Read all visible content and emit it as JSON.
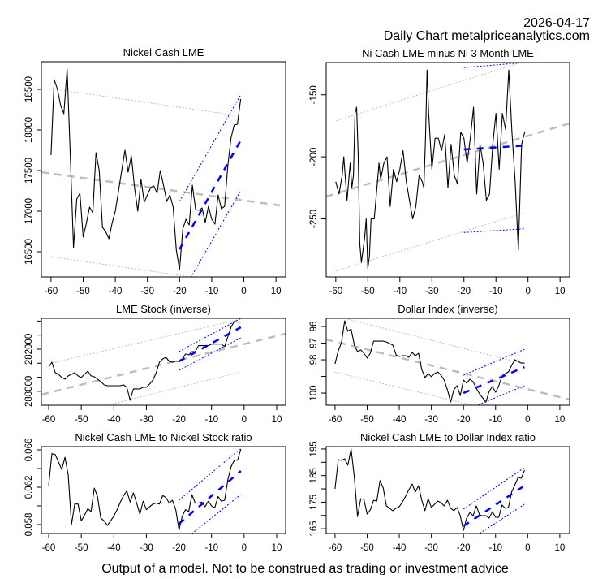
{
  "header": {
    "date": "2026-04-17",
    "subtitle": "Daily Chart metalpriceanalytics.com"
  },
  "footer": {
    "disclaimer": "Output of a model. Not to be construed as trading or investment advice"
  },
  "colors": {
    "series": "#000000",
    "long_trend": "#bebebe",
    "short_trend": "#0000ff"
  },
  "chart_data": [
    {
      "type": "line",
      "title": "Nickel Cash LME",
      "xlabel": "",
      "ylabel": "",
      "xlim": [
        -63,
        13
      ],
      "ylim": [
        16190,
        18840
      ],
      "inverted": false,
      "x_ticks": [
        -60,
        -50,
        -40,
        -30,
        -20,
        -10,
        0,
        10
      ],
      "y_ticks": [
        16500,
        17000,
        17500,
        18000,
        18500
      ],
      "y_tick_labels": [
        "16500",
        "17000",
        "17500",
        "18000",
        "18500"
      ],
      "x": [
        -60,
        -59,
        -58,
        -57,
        -56,
        -55,
        -54,
        -53,
        -52,
        -51,
        -50,
        -49,
        -48,
        -47,
        -46,
        -45,
        -44,
        -43,
        -42,
        -41,
        -40,
        -39,
        -38,
        -37,
        -36,
        -35,
        -34,
        -33,
        -32,
        -31,
        -30,
        -29,
        -28,
        -27,
        -26,
        -25,
        -24,
        -23,
        -22,
        -21,
        -20,
        -19,
        -18,
        -17,
        -16,
        -15,
        -14,
        -13,
        -12,
        -11,
        -10,
        -9,
        -8,
        -7,
        -6,
        -5,
        -4,
        -3,
        -2,
        -1
      ],
      "values": [
        17690,
        18620,
        18500,
        18300,
        18200,
        18750,
        17700,
        16550,
        17150,
        17220,
        16680,
        16850,
        17050,
        16980,
        17720,
        17500,
        16800,
        16750,
        16660,
        16850,
        17000,
        17250,
        17500,
        17750,
        17480,
        17680,
        17280,
        17000,
        17390,
        17110,
        17200,
        17290,
        17310,
        17220,
        17500,
        17320,
        17120,
        17200,
        17050,
        16520,
        16280,
        16780,
        16900,
        16830,
        17320,
        17020,
        17010,
        17040,
        16860,
        17060,
        16900,
        16840,
        17200,
        17030,
        17060,
        17550,
        17900,
        18060,
        18070,
        18380
      ],
      "long_trend": {
        "x": [
          -63,
          13
        ],
        "y": [
          17480,
          17060
        ]
      },
      "long_band": {
        "x": [
          -60,
          -1
        ],
        "upper": [
          18510,
          18170
        ],
        "lower": [
          16440,
          16100
        ]
      },
      "short_trend": {
        "x": [
          -20,
          -1
        ],
        "y": [
          16530,
          17870
        ]
      },
      "short_band": {
        "x": [
          -20,
          -1
        ],
        "upper": [
          17120,
          18430
        ],
        "lower": [
          15940,
          17250
        ]
      }
    },
    {
      "type": "line",
      "title": "Ni Cash LME minus Ni 3 Month LME",
      "xlabel": "",
      "ylabel": "",
      "xlim": [
        -63,
        13
      ],
      "ylim": [
        -296.8,
        -124
      ],
      "inverted": false,
      "x_ticks": [
        -60,
        -50,
        -40,
        -30,
        -20,
        -10,
        0,
        10
      ],
      "y_ticks": [
        -250,
        -200,
        -150
      ],
      "y_tick_labels": [
        "-250",
        "-200",
        "-150"
      ],
      "x": [
        -60,
        -59,
        -58,
        -57.5,
        -57,
        -56.5,
        -56,
        -55.5,
        -55,
        -54.5,
        -54,
        -53.5,
        -53,
        -52.5,
        -52,
        -51,
        -50.5,
        -50,
        -49.5,
        -49,
        -48,
        -47,
        -46.5,
        -46,
        -45,
        -44,
        -43,
        -42,
        -41,
        -40,
        -39,
        -38,
        -37,
        -36,
        -35,
        -34,
        -33,
        -32.5,
        -32,
        -31.5,
        -31,
        -30,
        -29,
        -28,
        -27,
        -26,
        -25,
        -24,
        -23,
        -22,
        -21,
        -20,
        -19,
        -18,
        -17,
        -16,
        -15,
        -14,
        -13,
        -12,
        -11,
        -10,
        -9,
        -8,
        -7,
        -6,
        -5,
        -4,
        -3,
        -2,
        -1
      ],
      "values": [
        -220,
        -230,
        -215,
        -200,
        -218,
        -235,
        -220,
        -205,
        -225,
        -215,
        -165,
        -160,
        -200,
        -270,
        -285,
        -265,
        -250,
        -290,
        -280,
        -250,
        -250,
        -220,
        -205,
        -218,
        -205,
        -200,
        -240,
        -210,
        -220,
        -210,
        -195,
        -220,
        -235,
        -250,
        -240,
        -215,
        -220,
        -225,
        -185,
        -130,
        -165,
        -210,
        -185,
        -185,
        -195,
        -182,
        -225,
        -190,
        -215,
        -222,
        -180,
        -185,
        -205,
        -185,
        -160,
        -230,
        -190,
        -205,
        -235,
        -230,
        -190,
        -165,
        -210,
        -165,
        -178,
        -130,
        -180,
        -220,
        -275,
        -190,
        -180
      ],
      "long_trend": {
        "x": [
          -63,
          13
        ],
        "y": [
          -232,
          -173
        ]
      },
      "long_band": {
        "x": [
          -60,
          -1
        ],
        "upper": [
          -171,
          -123
        ],
        "lower": [
          -292,
          -245
        ]
      },
      "short_trend": {
        "x": [
          -20,
          -1
        ],
        "y": [
          -194,
          -191
        ]
      },
      "short_band": {
        "x": [
          -20,
          -1
        ],
        "upper": [
          -128,
          -124
        ],
        "lower": [
          -261,
          -258
        ]
      }
    },
    {
      "type": "line",
      "title": "LME Stock (inverse)",
      "xlabel": "",
      "ylabel": "",
      "xlim": [
        -62.25,
        12.75
      ],
      "ylim": [
        289980,
        277610
      ],
      "inverted": true,
      "x_ticks": [
        -60,
        -50,
        -40,
        -30,
        -20,
        -10,
        0,
        10
      ],
      "y_ticks": [
        278000,
        280000,
        282000,
        284000,
        286000,
        288000
      ],
      "y_tick_labels": [
        "",
        "",
        "282000",
        "",
        "",
        "288000"
      ],
      "x": [
        -60,
        -59,
        -58,
        -57,
        -56,
        -55,
        -54,
        -53,
        -52,
        -51,
        -50,
        -49,
        -48,
        -47,
        -46,
        -45,
        -44,
        -43,
        -42,
        -41,
        -40,
        -39,
        -38,
        -37,
        -36,
        -35,
        -34,
        -33,
        -32,
        -31,
        -30,
        -29,
        -28,
        -27,
        -26,
        -25,
        -24,
        -23,
        -22,
        -21,
        -20,
        -19,
        -18,
        -17,
        -16,
        -15,
        -14,
        -13,
        -12,
        -11,
        -10,
        -9,
        -8,
        -7,
        -6,
        -5,
        -4,
        -3,
        -2,
        -1
      ],
      "values": [
        284540,
        283850,
        285350,
        285580,
        286040,
        286270,
        285810,
        285580,
        285350,
        285810,
        286040,
        285580,
        285120,
        285810,
        285930,
        286270,
        286620,
        287080,
        287200,
        287200,
        287200,
        287200,
        287200,
        287080,
        287430,
        289280,
        287660,
        287660,
        287660,
        287430,
        287430,
        286970,
        286390,
        285350,
        283850,
        283390,
        283160,
        283730,
        283850,
        283730,
        283730,
        283500,
        282690,
        282810,
        282350,
        282350,
        281500,
        281500,
        281500,
        281500,
        281270,
        281270,
        281270,
        281270,
        281620,
        280230,
        278850,
        278040,
        278150,
        278150
      ],
      "long_trend": {
        "x": [
          -62.25,
          12.75
        ],
        "y": [
          288470,
          279800
        ]
      },
      "long_band": {
        "x": [
          -59,
          -1
        ],
        "upper": [
          283970,
          277720
        ],
        "lower": [
          291930,
          285240
        ]
      },
      "short_trend": {
        "x": [
          -20,
          -1
        ],
        "y": [
          283730,
          278880
        ]
      },
      "short_band": {
        "x": [
          -20,
          -1
        ],
        "upper": [
          282350,
          277610
        ],
        "lower": [
          285010,
          280380
        ]
      }
    },
    {
      "type": "line",
      "title": "Dollar Index (inverse)",
      "xlabel": "",
      "ylabel": "",
      "xlim": [
        -62.76,
        13.06
      ],
      "ylim": [
        100.73,
        95.51
      ],
      "inverted": true,
      "x_ticks": [
        -60,
        -50,
        -40,
        -30,
        -20,
        -10,
        0,
        10
      ],
      "y_ticks": [
        96,
        97,
        98,
        99,
        100
      ],
      "y_tick_labels": [
        "96",
        "97",
        "98",
        "",
        "100"
      ],
      "x": [
        -60,
        -59,
        -58,
        -57,
        -56,
        -55,
        -54,
        -53,
        -52,
        -51,
        -50,
        -49,
        -48,
        -47,
        -46,
        -45,
        -44,
        -43,
        -42,
        -41,
        -40,
        -39,
        -38,
        -37,
        -36,
        -35,
        -34,
        -33,
        -32,
        -31,
        -30,
        -29,
        -28,
        -27,
        -26,
        -25,
        -24,
        -23,
        -22,
        -21,
        -20,
        -19,
        -18,
        -17,
        -16,
        -15,
        -14,
        -13,
        -12,
        -11,
        -10,
        -9,
        -8,
        -7,
        -6,
        -5,
        -4,
        -3,
        -2,
        -1
      ],
      "values": [
        98.24,
        97.46,
        96.98,
        95.66,
        96.29,
        96.15,
        97.12,
        97.51,
        97.41,
        97.61,
        97.9,
        97.61,
        96.88,
        96.88,
        96.88,
        96.88,
        96.93,
        97.02,
        97.12,
        97.71,
        97.8,
        97.76,
        97.76,
        97.85,
        97.56,
        97.76,
        97.61,
        98.59,
        99.07,
        98.83,
        99.02,
        98.83,
        98.73,
        98.93,
        99.22,
        99.8,
        100.54,
        99.8,
        99.56,
        100.15,
        99.22,
        99.41,
        99.17,
        99.32,
        99.71,
        100.05,
        100.29,
        100.54,
        99.9,
        99.61,
        99.95,
        99.56,
        98.98,
        98.83,
        98.73,
        98.34,
        98.0,
        98.1,
        98.2,
        98.2
      ],
      "long_trend": {
        "x": [
          -62.76,
          13.06
        ],
        "y": [
          96.78,
          100.39
        ]
      },
      "long_band": {
        "x": [
          -56,
          -1
        ],
        "upper": [
          95.56,
          98.24
        ],
        "lower": [
          98.74,
          101.48
        ]
      },
      "long_band_lower_start": -60,
      "short_trend": {
        "x": [
          -20,
          -1
        ],
        "y": [
          100.0,
          98.44
        ]
      },
      "short_band": {
        "x": [
          -20,
          -1
        ],
        "upper": [
          98.93,
          97.37
        ],
        "lower": [
          101.07,
          99.56
        ]
      }
    },
    {
      "type": "line",
      "title": "Nickel Cash LME to Nickel Stock ratio",
      "xlabel": "",
      "ylabel": "",
      "xlim": [
        -62.25,
        12.75
      ],
      "ylim": [
        0.05704,
        0.06635
      ],
      "inverted": false,
      "x_ticks": [
        -60,
        -50,
        -40,
        -30,
        -20,
        -10,
        0,
        10
      ],
      "y_ticks": [
        0.058,
        0.06,
        0.062,
        0.064,
        0.066
      ],
      "y_tick_labels": [
        "0.058",
        "",
        "0.062",
        "",
        "0.066"
      ],
      "x": [
        -60,
        -59,
        -58,
        -57,
        -56,
        -55,
        -54,
        -53,
        -52,
        -51,
        -50,
        -49,
        -48,
        -47,
        -46,
        -45,
        -44,
        -43,
        -42,
        -41,
        -40,
        -39,
        -38,
        -37,
        -36,
        -35,
        -34,
        -33,
        -32,
        -31,
        -30,
        -29,
        -28,
        -27,
        -26,
        -25,
        -24,
        -23,
        -22,
        -21,
        -20,
        -19,
        -18,
        -17,
        -16,
        -15,
        -14,
        -13,
        -12,
        -11,
        -10,
        -9,
        -8,
        -7,
        -6,
        -5,
        -4,
        -3,
        -2,
        -1
      ],
      "values": [
        0.0622,
        0.0656,
        0.0655,
        0.0647,
        0.0639,
        0.0652,
        0.0633,
        0.058,
        0.0602,
        0.0602,
        0.0584,
        0.059,
        0.0597,
        0.0594,
        0.0619,
        0.061,
        0.0587,
        0.0584,
        0.0579,
        0.0584,
        0.0589,
        0.0596,
        0.0604,
        0.0611,
        0.0616,
        0.0604,
        0.0614,
        0.0603,
        0.0591,
        0.0605,
        0.0596,
        0.0599,
        0.0602,
        0.0603,
        0.0602,
        0.0611,
        0.0609,
        0.0603,
        0.0606,
        0.0596,
        0.0574,
        0.0589,
        0.0596,
        0.0594,
        0.0612,
        0.0603,
        0.0603,
        0.0604,
        0.0599,
        0.0605,
        0.06,
        0.0598,
        0.061,
        0.0605,
        0.0606,
        0.0628,
        0.0642,
        0.0649,
        0.0649,
        0.0661
      ],
      "short_trend": {
        "x": [
          -20,
          -1
        ],
        "y": [
          0.05809,
          0.06374
        ]
      },
      "short_band": {
        "x": [
          -20,
          -1
        ],
        "upper": [
          0.06061,
          0.06617
        ],
        "lower": [
          0.05592,
          0.06122
        ]
      }
    },
    {
      "type": "line",
      "title": "Nickel Cash LME to Dollar Index ratio",
      "xlabel": "",
      "ylabel": "",
      "xlim": [
        -62.76,
        13.06
      ],
      "ylim": [
        163.2,
        195.9
      ],
      "inverted": false,
      "x_ticks": [
        -60,
        -50,
        -40,
        -30,
        -20,
        -10,
        0,
        10
      ],
      "y_ticks": [
        165,
        170,
        175,
        180,
        185,
        190,
        195
      ],
      "y_tick_labels": [
        "165",
        "",
        "175",
        "",
        "185",
        "",
        "195"
      ],
      "x": [
        -60,
        -59,
        -58,
        -57,
        -56,
        -55,
        -54,
        -53,
        -52,
        -51,
        -50,
        -49,
        -48,
        -47,
        -46,
        -45,
        -44,
        -43,
        -42,
        -41,
        -40,
        -39,
        -38,
        -37,
        -36,
        -35,
        -34,
        -33,
        -32,
        -31,
        -30,
        -29,
        -28,
        -27,
        -26,
        -25,
        -24,
        -23,
        -22,
        -21,
        -20,
        -19,
        -18,
        -17,
        -16,
        -15,
        -14,
        -13,
        -12,
        -11,
        -10,
        -9,
        -8,
        -7,
        -6,
        -5,
        -4,
        -3,
        -2,
        -1
      ],
      "values": [
        180.0,
        191.0,
        190.7,
        191.3,
        188.9,
        195.0,
        184.3,
        169.6,
        176.3,
        176.0,
        170.5,
        172.1,
        175.7,
        175.4,
        183.1,
        180.3,
        173.6,
        172.7,
        171.8,
        172.7,
        173.3,
        175.1,
        177.3,
        179.7,
        181.8,
        178.8,
        181.2,
        175.7,
        171.8,
        176.3,
        173.0,
        174.2,
        175.4,
        174.8,
        173.6,
        175.7,
        172.7,
        171.8,
        173.0,
        169.9,
        164.4,
        169.0,
        171.1,
        169.9,
        173.6,
        170.2,
        169.9,
        169.9,
        169.0,
        171.4,
        169.3,
        169.3,
        173.9,
        172.7,
        173.0,
        178.8,
        181.5,
        184.3,
        184.0,
        187.0
      ],
      "short_trend": {
        "x": [
          -20,
          -1
        ],
        "y": [
          166.0,
          181.2
        ]
      },
      "short_band": {
        "x": [
          -20,
          -1
        ],
        "upper": [
          172.4,
          188.0
        ],
        "lower": [
          159.3,
          174.2
        ]
      }
    }
  ]
}
